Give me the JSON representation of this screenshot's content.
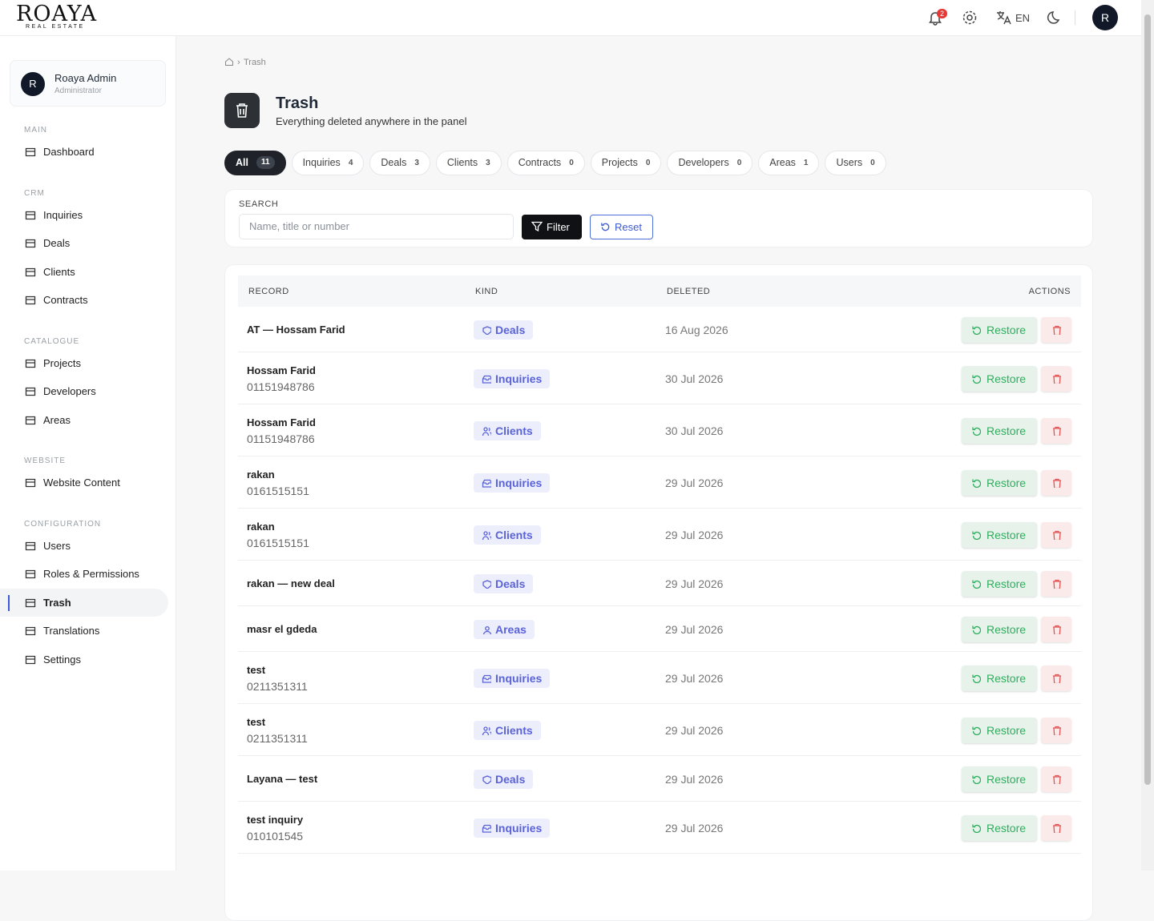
{
  "header": {
    "logo": "ROAYA",
    "logo_sub": "REAL ESTATE",
    "notifications": "2",
    "language": "EN",
    "avatar": "R"
  },
  "sidebar": {
    "user": {
      "initial": "R",
      "name": "Roaya Admin",
      "role": "Administrator"
    },
    "sections": [
      {
        "title": "MAIN",
        "items": [
          "Dashboard"
        ]
      },
      {
        "title": "CRM",
        "items": [
          "Inquiries",
          "Deals",
          "Clients",
          "Contracts"
        ]
      },
      {
        "title": "CATALOGUE",
        "items": [
          "Projects",
          "Developers",
          "Areas"
        ]
      },
      {
        "title": "WEBSITE",
        "items": [
          "Website Content"
        ]
      },
      {
        "title": "CONFIGURATION",
        "items": [
          "Users",
          "Roles & Permissions",
          "Trash",
          "Translations",
          "Settings"
        ]
      }
    ],
    "active": "Trash"
  },
  "breadcrumb": "Trash",
  "page": {
    "title": "Trash",
    "subtitle": "Everything deleted anywhere in the panel"
  },
  "tabs": [
    {
      "label": "All",
      "count": 11
    },
    {
      "label": "Inquiries",
      "count": 4
    },
    {
      "label": "Deals",
      "count": 3
    },
    {
      "label": "Clients",
      "count": 3
    },
    {
      "label": "Contracts",
      "count": 0
    },
    {
      "label": "Projects",
      "count": 0
    },
    {
      "label": "Developers",
      "count": 0
    },
    {
      "label": "Areas",
      "count": 1
    },
    {
      "label": "Users",
      "count": 0
    }
  ],
  "search": {
    "label": "SEARCH",
    "placeholder": "Name, title or number",
    "filter": "Filter",
    "reset": "Reset"
  },
  "table": {
    "headers": [
      "RECORD",
      "KIND",
      "DELETED",
      "ACTIONS"
    ],
    "restore": "Restore",
    "rows": [
      {
        "title": "AT — Hossam Farid",
        "kind": "Deals",
        "deleted": "16 Aug 2026"
      },
      {
        "title": "Hossam Farid",
        "subtitle": "01151948786",
        "kind": "Inquiries",
        "deleted": "30 Jul 2026"
      },
      {
        "title": "Hossam Farid",
        "subtitle": "01151948786",
        "kind": "Clients",
        "deleted": "30 Jul 2026"
      },
      {
        "title": "rakan",
        "subtitle": "0161515151",
        "kind": "Inquiries",
        "deleted": "29 Jul 2026"
      },
      {
        "title": "rakan",
        "subtitle": "0161515151",
        "kind": "Clients",
        "deleted": "29 Jul 2026"
      },
      {
        "title": "rakan — new deal",
        "kind": "Deals",
        "deleted": "29 Jul 2026"
      },
      {
        "title": "masr el gdeda",
        "kind": "Areas",
        "deleted": "29 Jul 2026"
      },
      {
        "title": "test",
        "subtitle": "0211351311",
        "kind": "Inquiries",
        "deleted": "29 Jul 2026"
      },
      {
        "title": "test",
        "subtitle": "0211351311",
        "kind": "Clients",
        "deleted": "29 Jul 2026"
      },
      {
        "title": "Layana — test",
        "kind": "Deals",
        "deleted": "29 Jul 2026"
      },
      {
        "title": "test inquiry",
        "subtitle": "010101545",
        "kind": "Inquiries",
        "deleted": "29 Jul 2026"
      }
    ]
  }
}
